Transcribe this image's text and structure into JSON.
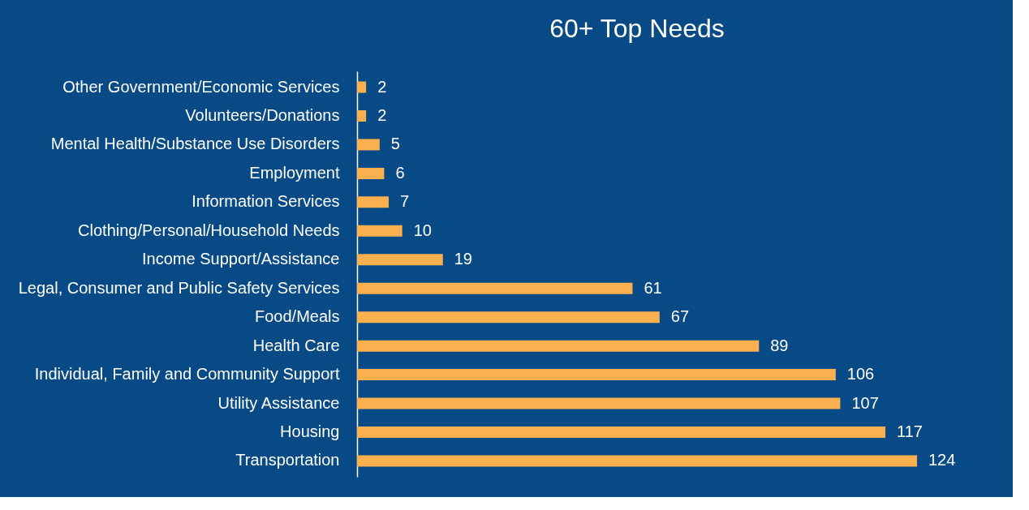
{
  "chart_data": {
    "type": "bar",
    "orientation": "horizontal",
    "title": "60+ Top Needs",
    "categories": [
      "Other Government/Economic Services",
      "Volunteers/Donations",
      "Mental Health/Substance Use Disorders",
      "Employment",
      "Information Services",
      "Clothing/Personal/Household Needs",
      "Income Support/Assistance",
      "Legal, Consumer and Public Safety Services",
      "Food/Meals",
      "Health Care",
      "Individual, Family and Community Support",
      "Utility Assistance",
      "Housing",
      "Transportation"
    ],
    "values": [
      2,
      2,
      5,
      6,
      7,
      10,
      19,
      61,
      67,
      89,
      106,
      107,
      117,
      124
    ],
    "color": "#fbb04f",
    "data_labels": true,
    "grid": false,
    "legend": false
  }
}
